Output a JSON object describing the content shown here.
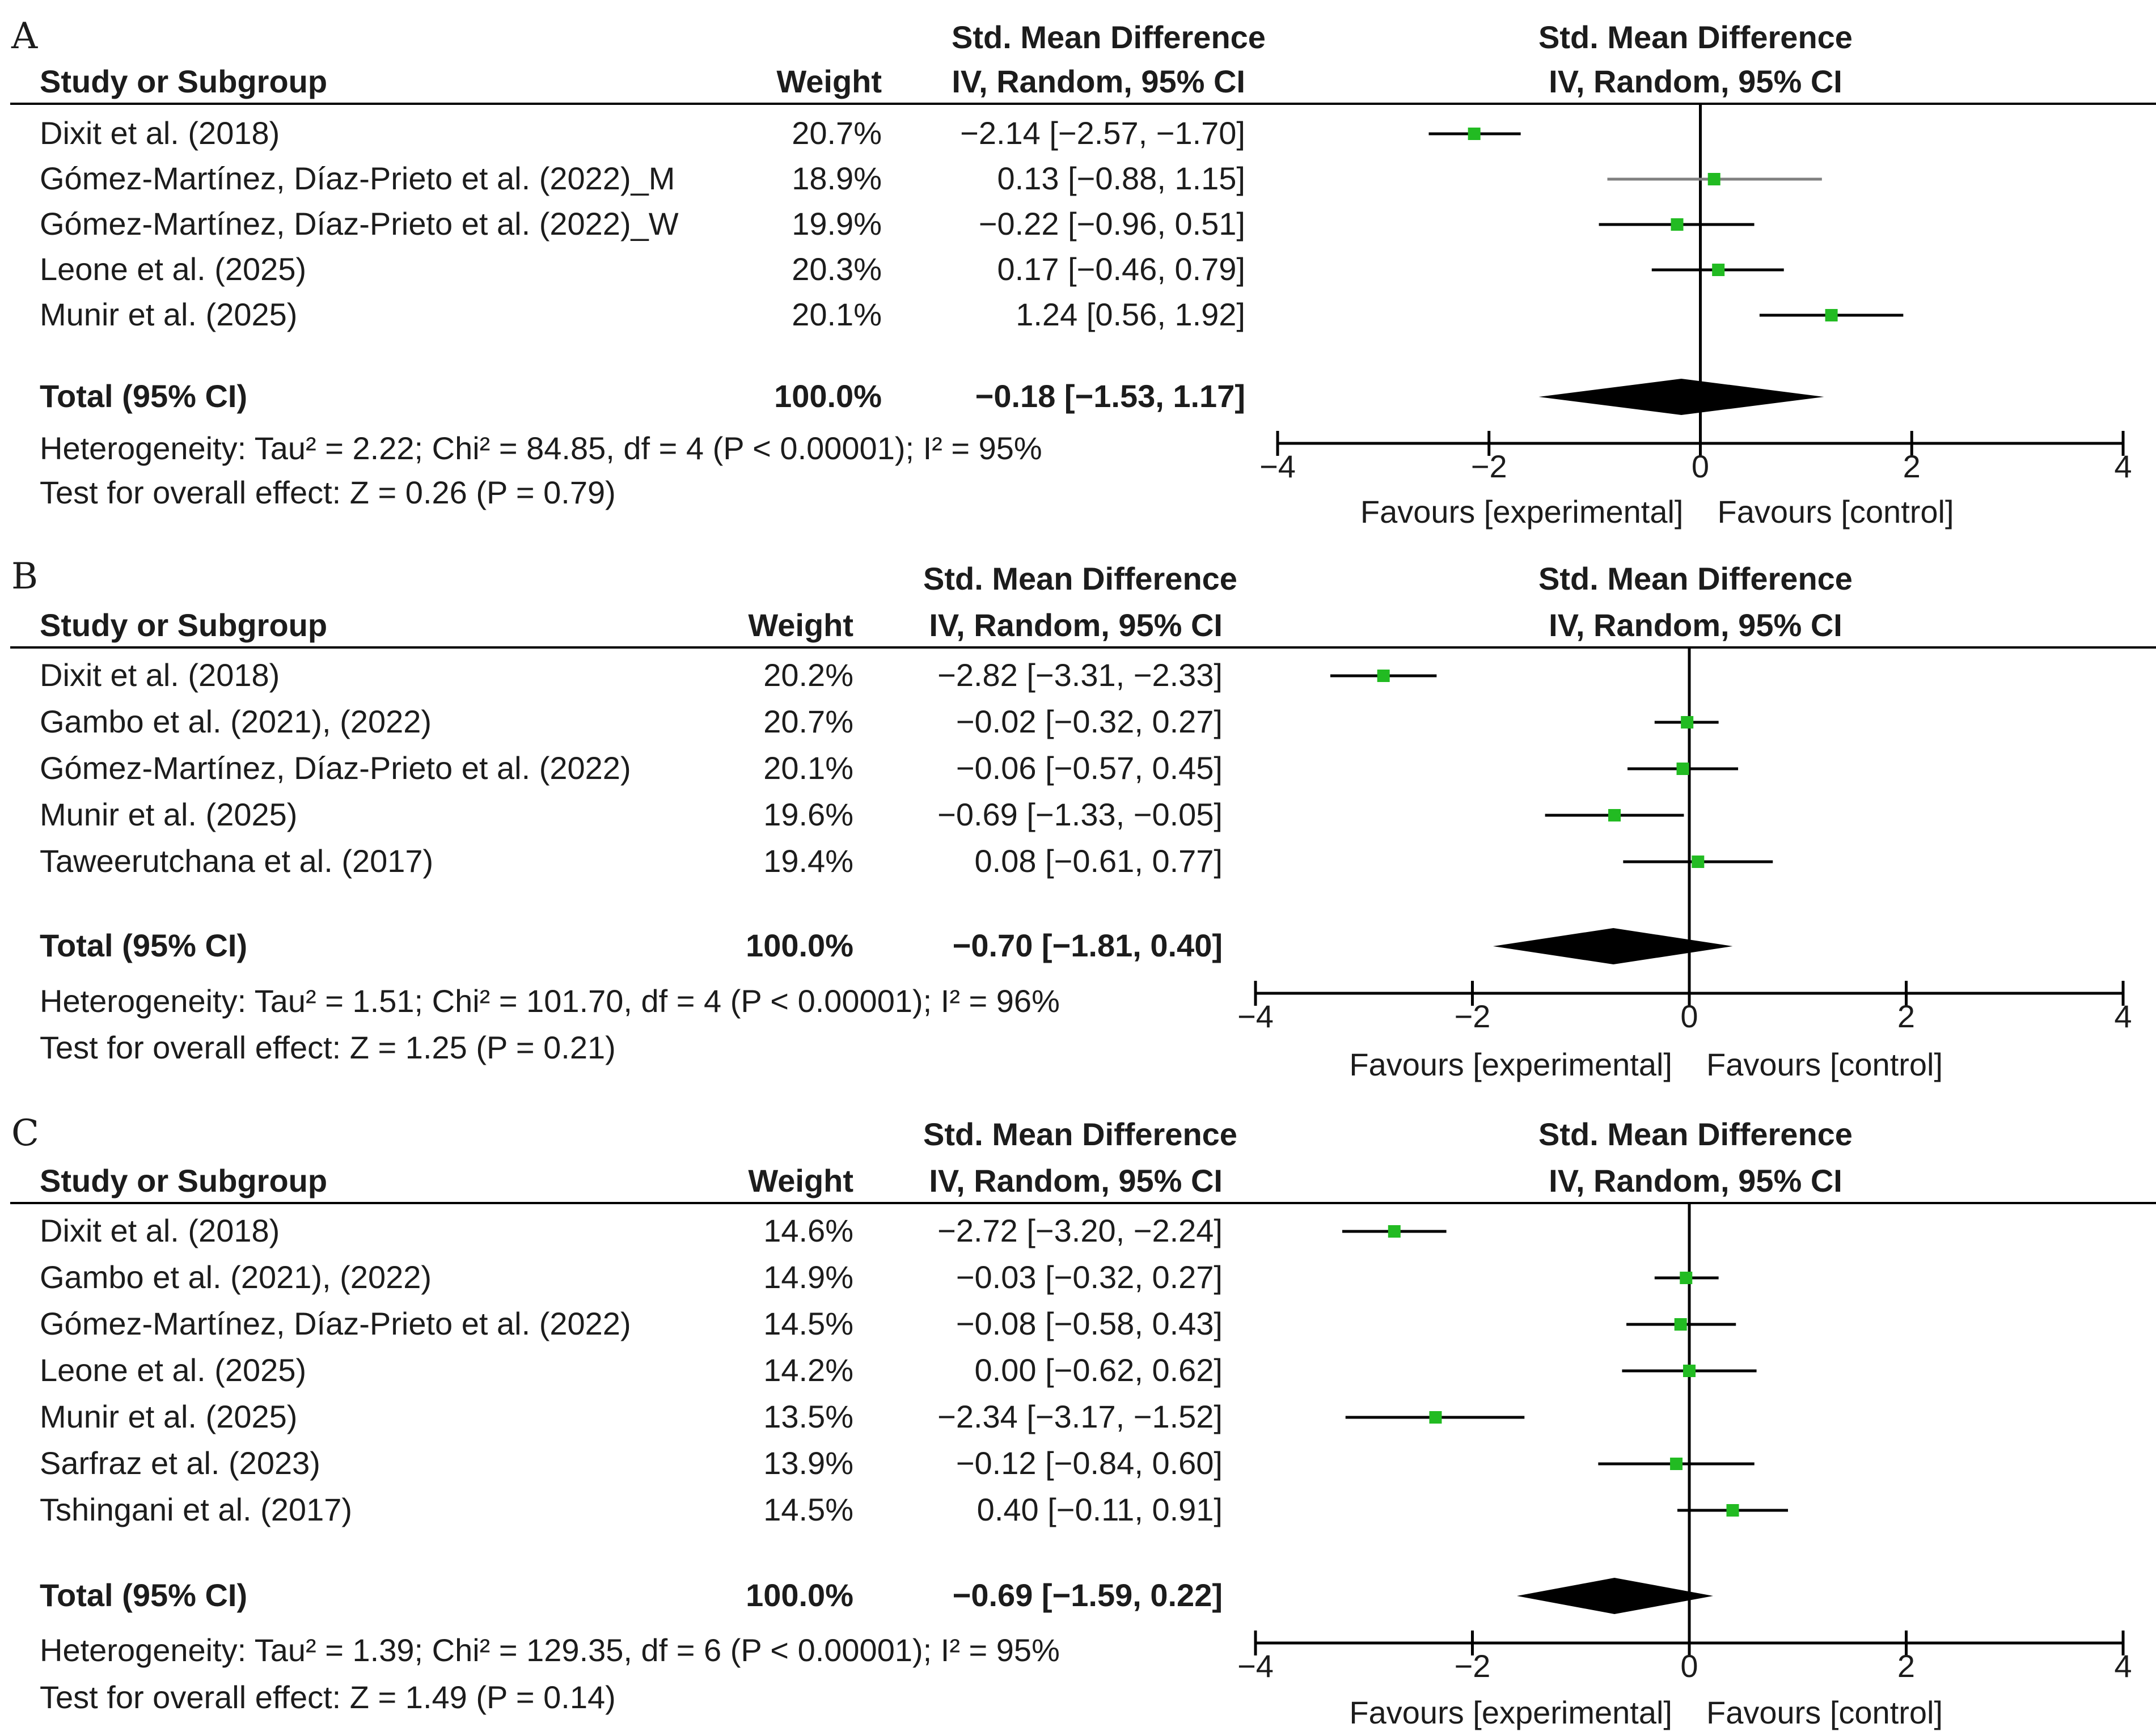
{
  "axis": {
    "min": -4,
    "max": 4,
    "ticks": [
      {
        "value": -4,
        "label": "−4"
      },
      {
        "value": -2,
        "label": "−2"
      },
      {
        "value": 0,
        "label": "0"
      },
      {
        "value": 2,
        "label": "2"
      },
      {
        "value": 4,
        "label": "4"
      }
    ],
    "favours_left": "Favours [experimental]",
    "favours_right": "Favours [control]"
  },
  "headers": {
    "study": "Study or Subgroup",
    "weight": "Weight",
    "effect_top": "Std. Mean Difference",
    "effect_bottom": "IV, Random, 95% CI",
    "plot_top": "Std. Mean Difference",
    "plot_bottom": "IV, Random, 95% CI"
  },
  "colors": {
    "marker": "#22bb22",
    "ci_line_dark": "#000000",
    "ci_line_gray": "#808080",
    "diamond": "#000000"
  },
  "chart_data": [
    {
      "type": "forest",
      "panel": "A",
      "studies": [
        {
          "name": "Dixit et al. (2018)",
          "weight": "20.7%",
          "ci_text": "−2.14 [−2.57, −1.70]",
          "est": -2.14,
          "lo": -2.57,
          "hi": -1.7
        },
        {
          "name": "Gómez-Martínez, Díaz-Prieto et al. (2022)_M",
          "weight": "18.9%",
          "ci_text": "0.13 [−0.88, 1.15]",
          "est": 0.13,
          "lo": -0.88,
          "hi": 1.15
        },
        {
          "name": "Gómez-Martínez, Díaz-Prieto et al. (2022)_W",
          "weight": "19.9%",
          "ci_text": "−0.22 [−0.96, 0.51]",
          "est": -0.22,
          "lo": -0.96,
          "hi": 0.51
        },
        {
          "name": "Leone et al. (2025)",
          "weight": "20.3%",
          "ci_text": "0.17 [−0.46, 0.79]",
          "est": 0.17,
          "lo": -0.46,
          "hi": 0.79
        },
        {
          "name": "Munir et al. (2025)",
          "weight": "20.1%",
          "ci_text": "1.24 [0.56, 1.92]",
          "est": 1.24,
          "lo": 0.56,
          "hi": 1.92
        }
      ],
      "total": {
        "label": "Total (95% CI)",
        "weight": "100.0%",
        "ci_text": "−0.18 [−1.53, 1.17]",
        "est": -0.18,
        "lo": -1.53,
        "hi": 1.17
      },
      "heterogeneity": "Heterogeneity: Tau² = 2.22; Chi² = 84.85, df = 4 (P < 0.00001); I² = 95%",
      "overall": "Test for overall effect: Z = 0.26 (P = 0.79)"
    },
    {
      "type": "forest",
      "panel": "B",
      "studies": [
        {
          "name": "Dixit et al. (2018)",
          "weight": "20.2%",
          "ci_text": "−2.82 [−3.31, −2.33]",
          "est": -2.82,
          "lo": -3.31,
          "hi": -2.33
        },
        {
          "name": "Gambo et al. (2021), (2022)",
          "weight": "20.7%",
          "ci_text": "−0.02 [−0.32,  0.27]",
          "est": -0.02,
          "lo": -0.32,
          "hi": 0.27
        },
        {
          "name": "Gómez-Martínez, Díaz-Prieto et al. (2022)",
          "weight": "20.1%",
          "ci_text": "−0.06 [−0.57,  0.45]",
          "est": -0.06,
          "lo": -0.57,
          "hi": 0.45
        },
        {
          "name": "Munir et al. (2025)",
          "weight": "19.6%",
          "ci_text": "−0.69 [−1.33, −0.05]",
          "est": -0.69,
          "lo": -1.33,
          "hi": -0.05
        },
        {
          "name": "Taweerutchana et al. (2017)",
          "weight": "19.4%",
          "ci_text": "0.08 [−0.61, 0.77]",
          "est": 0.08,
          "lo": -0.61,
          "hi": 0.77
        }
      ],
      "total": {
        "label": "Total (95% CI)",
        "weight": "100.0%",
        "ci_text": "−0.70 [−1.81, 0.40]",
        "est": -0.7,
        "lo": -1.81,
        "hi": 0.4
      },
      "heterogeneity": "Heterogeneity: Tau² = 1.51; Chi² = 101.70, df = 4 (P < 0.00001); I² = 96%",
      "overall": "Test for overall effect: Z = 1.25 (P = 0.21)"
    },
    {
      "type": "forest",
      "panel": "C",
      "studies": [
        {
          "name": "Dixit et al. (2018)",
          "weight": "14.6%",
          "ci_text": "−2.72 [−3.20, −2.24]",
          "est": -2.72,
          "lo": -3.2,
          "hi": -2.24
        },
        {
          "name": "Gambo et al. (2021), (2022)",
          "weight": "14.9%",
          "ci_text": "−0.03 [−0.32, 0.27]",
          "est": -0.03,
          "lo": -0.32,
          "hi": 0.27
        },
        {
          "name": "Gómez-Martínez, Díaz-Prieto et al. (2022)",
          "weight": "14.5%",
          "ci_text": "−0.08 [−0.58, 0.43]",
          "est": -0.08,
          "lo": -0.58,
          "hi": 0.43
        },
        {
          "name": "Leone et al. (2025)",
          "weight": "14.2%",
          "ci_text": "0.00 [−0.62, 0.62]",
          "est": 0.0,
          "lo": -0.62,
          "hi": 0.62
        },
        {
          "name": "Munir et al. (2025)",
          "weight": "13.5%",
          "ci_text": "−2.34 [−3.17, −1.52]",
          "est": -2.34,
          "lo": -3.17,
          "hi": -1.52
        },
        {
          "name": "Sarfraz et al. (2023)",
          "weight": "13.9%",
          "ci_text": "−0.12 [−0.84, 0.60]",
          "est": -0.12,
          "lo": -0.84,
          "hi": 0.6
        },
        {
          "name": "Tshingani et al. (2017)",
          "weight": "14.5%",
          "ci_text": "0.40 [−0.11, 0.91]",
          "est": 0.4,
          "lo": -0.11,
          "hi": 0.91
        }
      ],
      "total": {
        "label": "Total (95% CI)",
        "weight": "100.0%",
        "ci_text": "−0.69 [−1.59, 0.22]",
        "est": -0.69,
        "lo": -1.59,
        "hi": 0.22
      },
      "heterogeneity": "Heterogeneity: Tau² = 1.39; Chi² = 129.35, df = 6 (P < 0.00001); I² = 95%",
      "overall": "Test for overall effect: Z = 1.49 (P = 0.14)"
    }
  ]
}
